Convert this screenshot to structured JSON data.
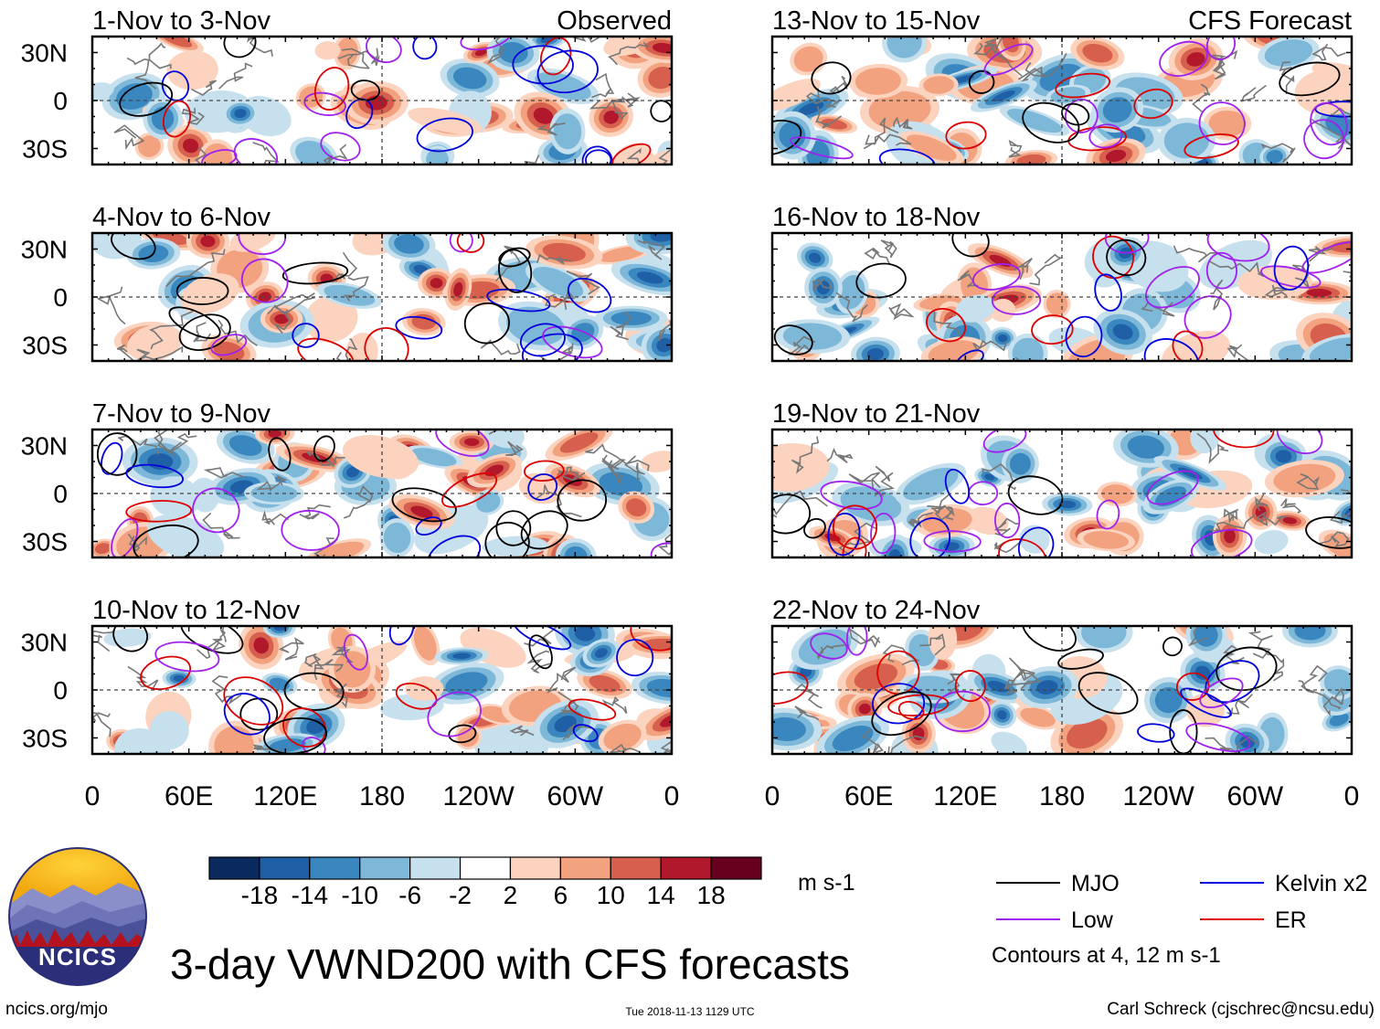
{
  "figure": {
    "title": "3-day VWND200 with CFS forecasts",
    "left_footer": "ncics.org/mjo",
    "timestamp": "Tue 2018-11-13 1129 UTC",
    "credit": "Carl Schreck (cjschrec@ncsu.edu)",
    "logo_text": "NCICS",
    "observed_label": "Observed",
    "forecast_label": "CFS Forecast"
  },
  "colorbar": {
    "units": "m s-1",
    "tick_labels": [
      "-18",
      "-14",
      "-10",
      "-6",
      "-2",
      "2",
      "6",
      "10",
      "14",
      "18"
    ],
    "colors": [
      "#0a2a5e",
      "#1f5fa6",
      "#3a87c0",
      "#7db8d8",
      "#c7e0ee",
      "#ffffff",
      "#fbd3bf",
      "#f2a27e",
      "#d6604d",
      "#b2182b",
      "#67001f"
    ]
  },
  "legend": {
    "items": [
      {
        "label": "MJO",
        "color": "#000000"
      },
      {
        "label": "Kelvin x2",
        "color": "#0000dd"
      },
      {
        "label": "Low",
        "color": "#a020f0"
      },
      {
        "label": "ER",
        "color": "#dd0000"
      }
    ],
    "note": "Contours at 4, 12 m s-1"
  },
  "chart_data": [
    {
      "type": "heatmap",
      "panel": 1,
      "title": "1-Nov to 3-Nov",
      "period": "observed",
      "x_ticks": [
        "0",
        "60E",
        "120E",
        "180",
        "120W",
        "60W",
        "0"
      ],
      "y_ticks": [
        "30N",
        "0",
        "30S"
      ],
      "xlim": [
        0,
        360
      ],
      "ylim": [
        -40,
        40
      ]
    },
    {
      "type": "heatmap",
      "panel": 2,
      "title": "4-Nov to 6-Nov",
      "period": "observed",
      "x_ticks": [
        "0",
        "60E",
        "120E",
        "180",
        "120W",
        "60W",
        "0"
      ],
      "y_ticks": [
        "30N",
        "0",
        "30S"
      ],
      "xlim": [
        0,
        360
      ],
      "ylim": [
        -40,
        40
      ]
    },
    {
      "type": "heatmap",
      "panel": 3,
      "title": "7-Nov to 9-Nov",
      "period": "observed",
      "x_ticks": [
        "0",
        "60E",
        "120E",
        "180",
        "120W",
        "60W",
        "0"
      ],
      "y_ticks": [
        "30N",
        "0",
        "30S"
      ],
      "xlim": [
        0,
        360
      ],
      "ylim": [
        -40,
        40
      ]
    },
    {
      "type": "heatmap",
      "panel": 4,
      "title": "10-Nov to 12-Nov",
      "period": "observed",
      "x_ticks": [
        "0",
        "60E",
        "120E",
        "180",
        "120W",
        "60W",
        "0"
      ],
      "y_ticks": [
        "30N",
        "0",
        "30S"
      ],
      "xlim": [
        0,
        360
      ],
      "ylim": [
        -40,
        40
      ]
    },
    {
      "type": "heatmap",
      "panel": 5,
      "title": "13-Nov to 15-Nov",
      "period": "forecast",
      "x_ticks": [
        "0",
        "60E",
        "120E",
        "180",
        "120W",
        "60W",
        "0"
      ],
      "y_ticks": [],
      "xlim": [
        0,
        360
      ],
      "ylim": [
        -40,
        40
      ]
    },
    {
      "type": "heatmap",
      "panel": 6,
      "title": "16-Nov to 18-Nov",
      "period": "forecast",
      "x_ticks": [
        "0",
        "60E",
        "120E",
        "180",
        "120W",
        "60W",
        "0"
      ],
      "y_ticks": [],
      "xlim": [
        0,
        360
      ],
      "ylim": [
        -40,
        40
      ]
    },
    {
      "type": "heatmap",
      "panel": 7,
      "title": "19-Nov to 21-Nov",
      "period": "forecast",
      "x_ticks": [
        "0",
        "60E",
        "120E",
        "180",
        "120W",
        "60W",
        "0"
      ],
      "y_ticks": [],
      "xlim": [
        0,
        360
      ],
      "ylim": [
        -40,
        40
      ]
    },
    {
      "type": "heatmap",
      "panel": 8,
      "title": "22-Nov to 24-Nov",
      "period": "forecast",
      "x_ticks": [
        "0",
        "60E",
        "120E",
        "180",
        "120W",
        "60W",
        "0"
      ],
      "y_ticks": [],
      "xlim": [
        0,
        360
      ],
      "ylim": [
        -40,
        40
      ]
    }
  ]
}
